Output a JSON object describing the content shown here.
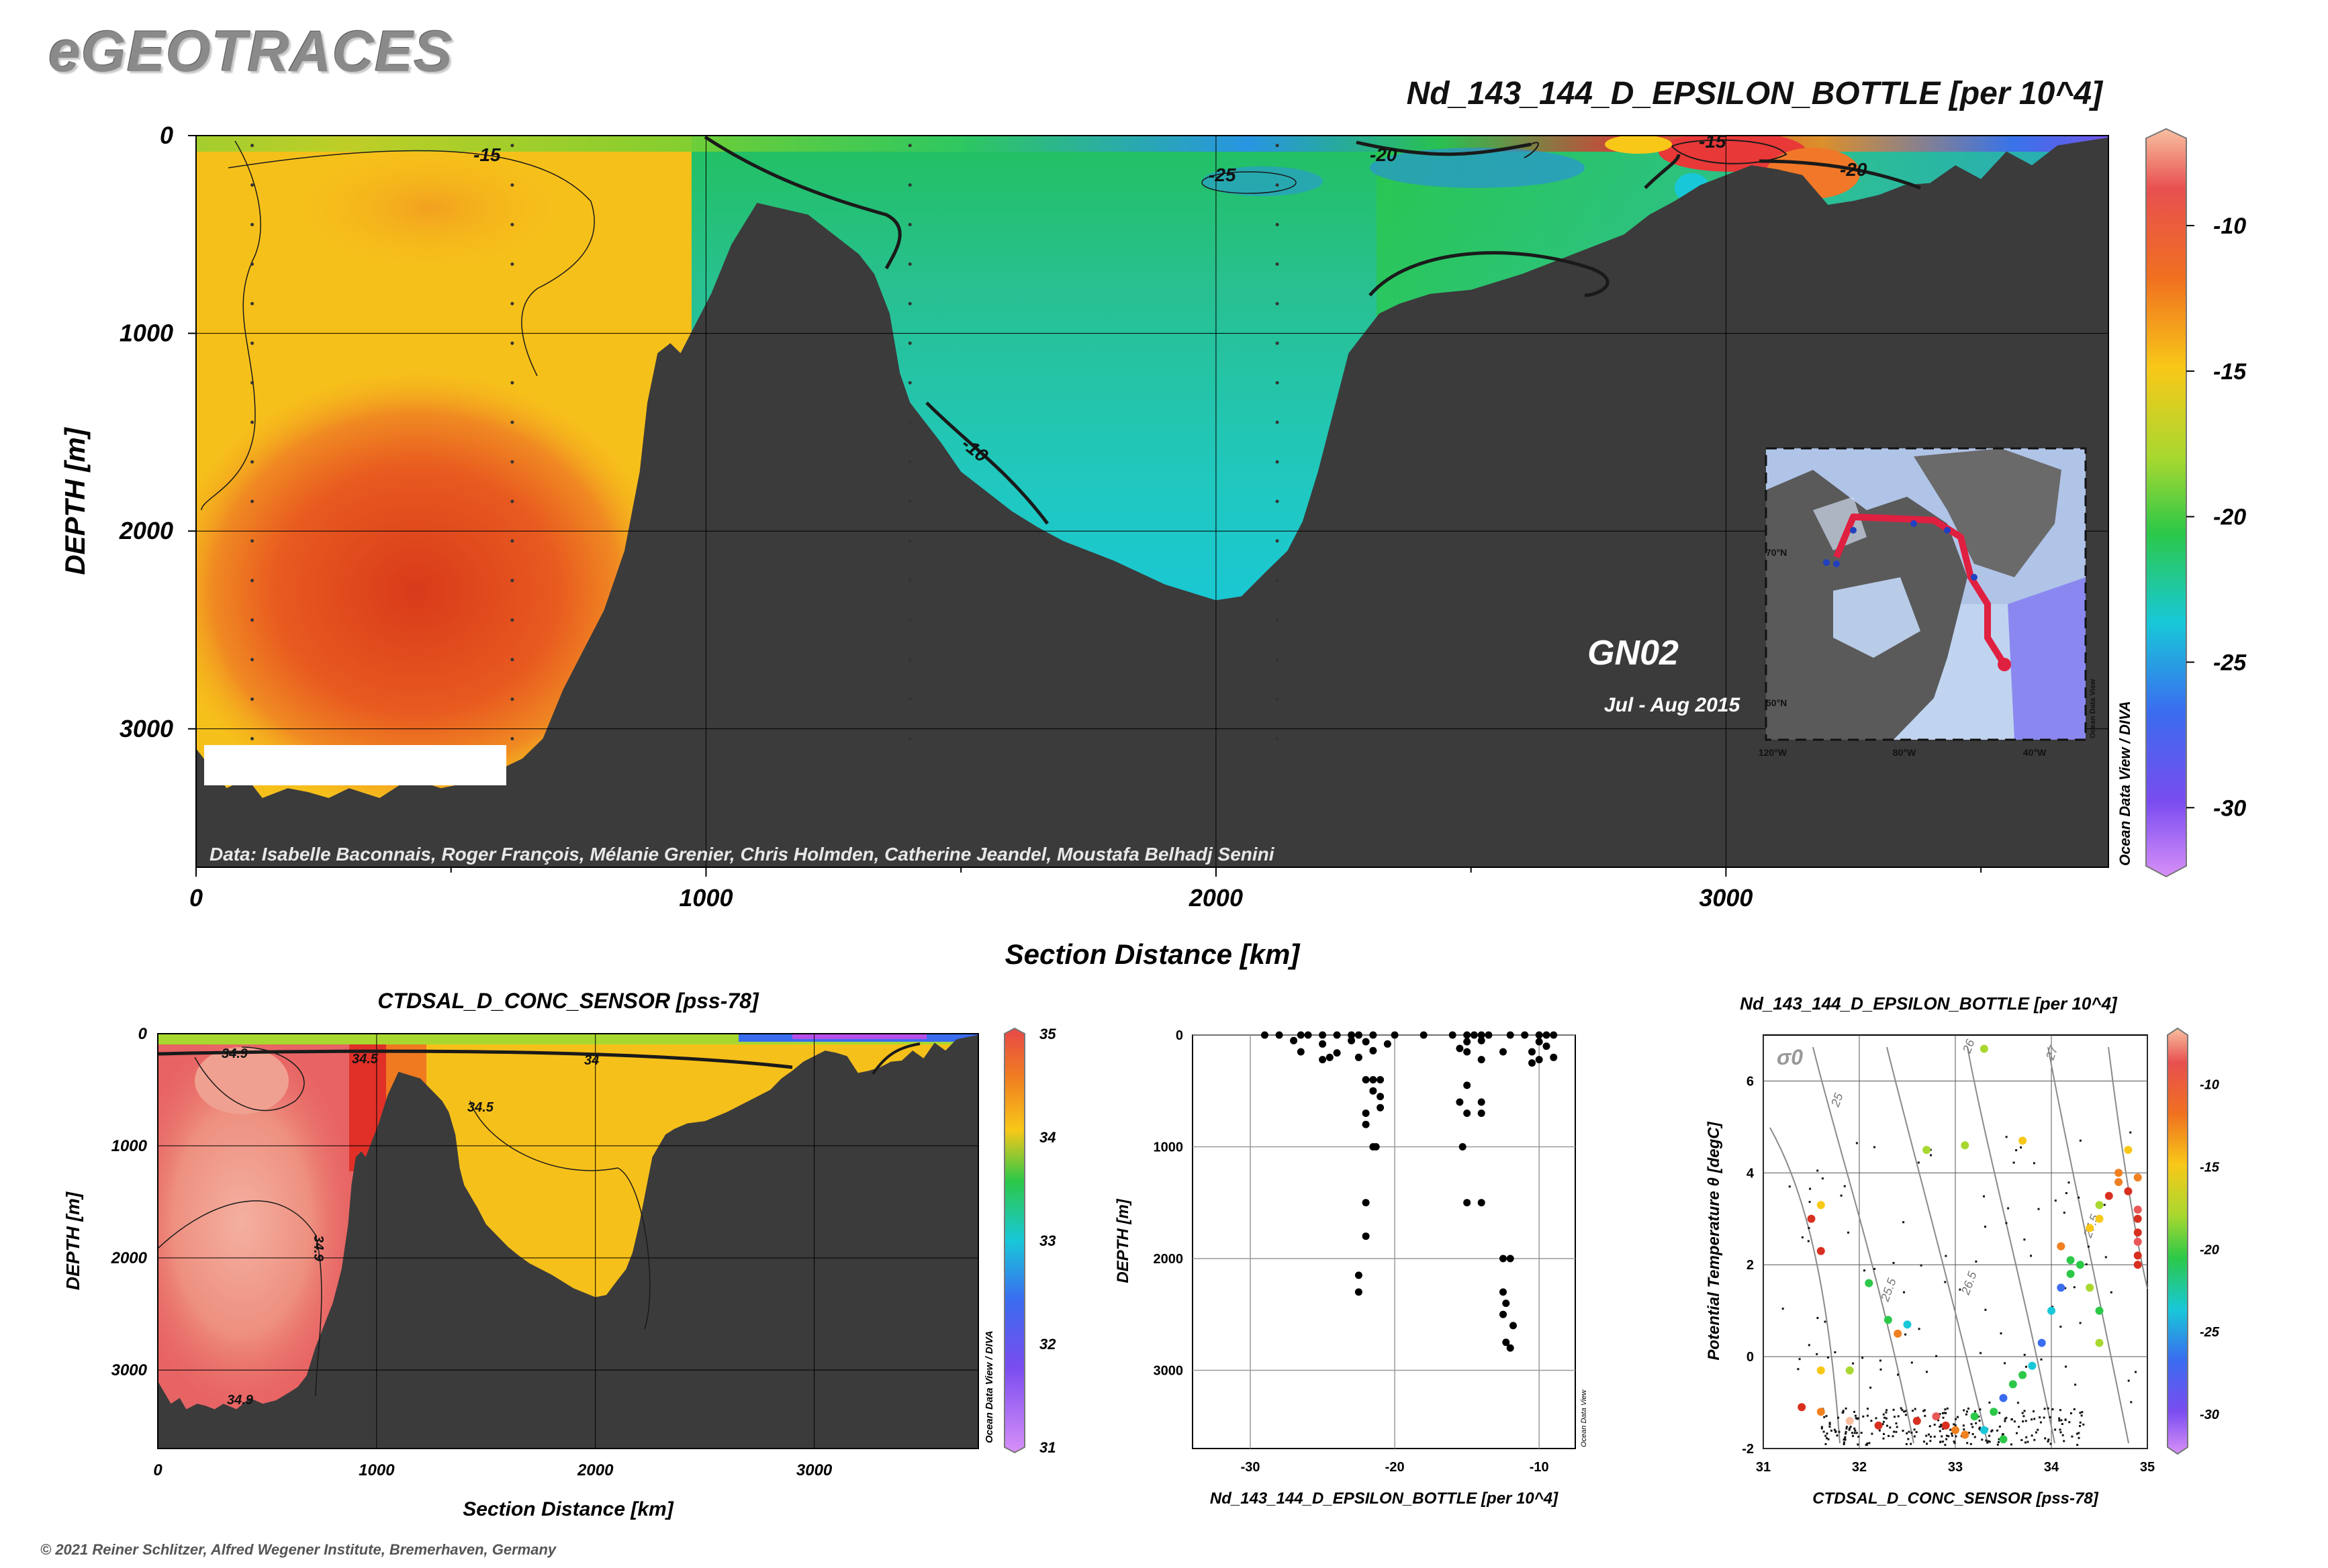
{
  "logo": "eGEOTRACES",
  "copyright": "© 2021 Reiner Schlitzer, Alfred Wegener Institute, Bremerhaven, Germany",
  "colors": {
    "terrain": "#3b3b3b",
    "scale": [
      "#b84ee8",
      "#7a4cf0",
      "#3a6cf0",
      "#18c8d8",
      "#2cc848",
      "#a8d830",
      "#f8c818",
      "#f08020",
      "#d83020",
      "#e85858",
      "#f8c0a0"
    ]
  },
  "main": {
    "title": "Nd_143_144_D_EPSILON_BOTTLE [per 10^4]",
    "xlabel": "Section Distance [km]",
    "ylabel": "DEPTH [m]",
    "credit": "Data: Isabelle Baconnais, Roger François, Mélanie Grenier, Chris Holmden, Catherine Jeandel, Moustafa Belhadj Senini",
    "watermark": "Ocean Data View / DIVA",
    "section_name": "GN02",
    "date_range": "Jul - Aug 2015",
    "contour_labels": [
      "-15",
      "-20",
      "-25",
      "-10",
      "-15",
      "-20"
    ]
  },
  "inset_map": {
    "lat_labels": [
      "70°N",
      "50°N"
    ],
    "lon_labels": [
      "120°W",
      "80°W",
      "40°W"
    ],
    "watermark": "Ocean Data View"
  },
  "bottom_left": {
    "title": "CTDSAL_D_CONC_SENSOR [pss-78]",
    "xlabel": "Section Distance [km]",
    "ylabel": "DEPTH [m]",
    "watermark": "Ocean Data View / DIVA",
    "contour_labels": [
      "34.9",
      "34.5",
      "34",
      "34.5",
      "34.9",
      "34.9"
    ]
  },
  "bottom_mid": {
    "xlabel": "Nd_143_144_D_EPSILON_BOTTLE [per 10^4]",
    "ylabel": "DEPTH [m]",
    "watermark": "Ocean Data View"
  },
  "bottom_right": {
    "title": "Nd_143_144_D_EPSILON_BOTTLE [per 10^4]",
    "xlabel": "CTDSAL_D_CONC_SENSOR [pss-78]",
    "ylabel": "Potential Temperature θ [degC]",
    "sigma_label": "σ0",
    "isopycnal_labels": [
      "25",
      "25.5",
      "26",
      "26.5",
      "27",
      "27.5"
    ]
  },
  "chart_data": [
    {
      "type": "heatmap",
      "title": "Nd_143_144_D_EPSILON_BOTTLE [per 10^4]",
      "xlabel": "Section Distance [km]",
      "ylabel": "DEPTH [m]",
      "xlim": [
        0,
        3750
      ],
      "ylim": [
        3700,
        0
      ],
      "x_ticks": [
        "0",
        "1000",
        "2000",
        "3000"
      ],
      "y_ticks": [
        "0",
        "1000",
        "2000",
        "3000"
      ],
      "colorbar": {
        "range": [
          -32,
          -7
        ],
        "ticks": [
          "-10",
          "-15",
          "-20",
          "-25",
          "-30"
        ]
      },
      "bathymetry": {
        "x": [
          0,
          30,
          60,
          100,
          130,
          180,
          220,
          260,
          300,
          360,
          420,
          480,
          540,
          600,
          640,
          680,
          720,
          760,
          800,
          840,
          870,
          885,
          905,
          930,
          950,
          970,
          990,
          1010,
          1050,
          1100,
          1150,
          1200,
          1250,
          1300,
          1330,
          1360,
          1380,
          1400,
          1430,
          1460,
          1500,
          1550,
          1600,
          1650,
          1700,
          1800,
          1900,
          2000,
          2050,
          2100,
          2140,
          2170,
          2200,
          2230,
          2260,
          2290,
          2320,
          2360,
          2420,
          2500,
          2600,
          2700,
          2800,
          2850,
          2900,
          2950,
          3000,
          3050,
          3100,
          3150,
          3200,
          3250,
          3300,
          3350,
          3400,
          3450,
          3500,
          3550,
          3600,
          3650,
          3700,
          3750
        ],
        "depth": [
          3100,
          3200,
          3300,
          3250,
          3350,
          3300,
          3320,
          3350,
          3300,
          3350,
          3250,
          3300,
          3270,
          3200,
          3150,
          3050,
          2800,
          2600,
          2400,
          2100,
          1700,
          1350,
          1100,
          1050,
          1100,
          1000,
          900,
          800,
          550,
          340,
          370,
          400,
          500,
          600,
          700,
          900,
          1200,
          1350,
          1450,
          1550,
          1700,
          1800,
          1900,
          1980,
          2050,
          2150,
          2270,
          2350,
          2330,
          2200,
          2100,
          1950,
          1700,
          1400,
          1100,
          1000,
          900,
          850,
          800,
          780,
          700,
          600,
          500,
          400,
          330,
          250,
          200,
          150,
          170,
          200,
          350,
          330,
          300,
          250,
          240,
          150,
          220,
          80,
          150,
          50,
          30,
          10
        ]
      },
      "contours": [
        {
          "level": -15,
          "label_x": 580,
          "label_depth": 90
        },
        {
          "level": -20,
          "label_x": 2340,
          "label_depth": 90
        },
        {
          "level": -25,
          "label_x": 2020,
          "label_depth": 200
        },
        {
          "level": -20,
          "label_x": 1550,
          "label_depth": 1550
        },
        {
          "level": -10,
          "label_x": 2970,
          "label_depth": 40
        },
        {
          "level": -15,
          "label_x": 3210,
          "label_depth": 170
        }
      ],
      "stations_km": [
        110,
        620,
        1400,
        2120
      ],
      "annotation": "GN02 Jul - Aug 2015"
    },
    {
      "type": "heatmap",
      "title": "CTDSAL_D_CONC_SENSOR [pss-78]",
      "xlabel": "Section Distance [km]",
      "ylabel": "DEPTH [m]",
      "xlim": [
        0,
        3750
      ],
      "ylim": [
        3700,
        0
      ],
      "x_ticks": [
        "0",
        "1000",
        "2000",
        "3000"
      ],
      "y_ticks": [
        "0",
        "1000",
        "2000",
        "3000"
      ],
      "colorbar": {
        "range": [
          31,
          35
        ],
        "ticks": [
          "35",
          "34",
          "33",
          "32",
          "31"
        ]
      }
    },
    {
      "type": "scatter",
      "xlabel": "Nd_143_144_D_EPSILON_BOTTLE [per 10^4]",
      "ylabel": "DEPTH [m]",
      "xlim": [
        -34,
        -7.5
      ],
      "ylim": [
        3700,
        0
      ],
      "x_ticks": [
        "-30",
        "-20",
        "-10"
      ],
      "y_ticks": [
        "0",
        "1000",
        "2000",
        "3000"
      ],
      "points": [
        [
          -29,
          0
        ],
        [
          -28,
          0
        ],
        [
          -26.5,
          0
        ],
        [
          -26,
          0
        ],
        [
          -25,
          0
        ],
        [
          -24,
          0
        ],
        [
          -23,
          0
        ],
        [
          -22.5,
          0
        ],
        [
          -21.5,
          0
        ],
        [
          -20,
          0
        ],
        [
          -18,
          0
        ],
        [
          -16,
          0
        ],
        [
          -15,
          0
        ],
        [
          -14.5,
          0
        ],
        [
          -14,
          0
        ],
        [
          -13.5,
          0
        ],
        [
          -12,
          0
        ],
        [
          -11,
          0
        ],
        [
          -10,
          0
        ],
        [
          -9.5,
          0
        ],
        [
          -9,
          0
        ],
        [
          -27,
          50
        ],
        [
          -25,
          80
        ],
        [
          -23,
          50
        ],
        [
          -22,
          60
        ],
        [
          -15,
          60
        ],
        [
          -14,
          50
        ],
        [
          -10,
          60
        ],
        [
          -9.5,
          100
        ],
        [
          -26.5,
          150
        ],
        [
          -24,
          160
        ],
        [
          -20.5,
          80
        ],
        [
          -15.5,
          120
        ],
        [
          -15,
          150
        ],
        [
          -12.5,
          150
        ],
        [
          -10.5,
          150
        ],
        [
          -9,
          200
        ],
        [
          -25,
          220
        ],
        [
          -24.5,
          200
        ],
        [
          -22.5,
          200
        ],
        [
          -21.5,
          140
        ],
        [
          -14,
          220
        ],
        [
          -10,
          220
        ],
        [
          -10.5,
          250
        ],
        [
          -21.5,
          400
        ],
        [
          -21,
          400
        ],
        [
          -22,
          400
        ],
        [
          -21.5,
          500
        ],
        [
          -21,
          550
        ],
        [
          -21,
          650
        ],
        [
          -22,
          700
        ],
        [
          -22,
          800
        ],
        [
          -15,
          450
        ],
        [
          -15.5,
          600
        ],
        [
          -14,
          600
        ],
        [
          -15,
          700
        ],
        [
          -14,
          700
        ],
        [
          -21.5,
          1000
        ],
        [
          -21.3,
          1000
        ],
        [
          -15.3,
          1000
        ],
        [
          -22,
          1500
        ],
        [
          -15,
          1500
        ],
        [
          -14,
          1500
        ],
        [
          -22,
          1800
        ],
        [
          -12.5,
          2000
        ],
        [
          -12,
          2000
        ],
        [
          -22.5,
          2150
        ],
        [
          -22.5,
          2300
        ],
        [
          -12.5,
          2300
        ],
        [
          -12.3,
          2400
        ],
        [
          -12.5,
          2500
        ],
        [
          -11.8,
          2600
        ],
        [
          -12.3,
          2750
        ],
        [
          -12,
          2800
        ]
      ]
    },
    {
      "type": "scatter",
      "title": "Nd_143_144_D_EPSILON_BOTTLE [per 10^4]",
      "xlabel": "CTDSAL_D_CONC_SENSOR [pss-78]",
      "ylabel": "Potential Temperature θ [degC]",
      "xlim": [
        31,
        35
      ],
      "ylim": [
        -2,
        7
      ],
      "x_ticks": [
        "31",
        "32",
        "33",
        "34",
        "35"
      ],
      "y_ticks": [
        "-2",
        "0",
        "2",
        "4",
        "6"
      ],
      "colorbar": {
        "range": [
          -32,
          -7
        ],
        "ticks": [
          "-10",
          "-15",
          "-20",
          "-25",
          "-30"
        ]
      },
      "isopycnals": [
        "25",
        "25.5",
        "26",
        "26.5",
        "27",
        "27.5"
      ],
      "colored_points": [
        [
          31.5,
          3.0,
          -12
        ],
        [
          31.6,
          2.3,
          -11
        ],
        [
          31.6,
          3.3,
          -17
        ],
        [
          32.1,
          1.6,
          -23
        ],
        [
          32.3,
          0.8,
          -23
        ],
        [
          32.5,
          0.7,
          -24
        ],
        [
          32.4,
          0.5,
          -15
        ],
        [
          31.9,
          -0.3,
          -20
        ],
        [
          31.6,
          -0.3,
          -17
        ],
        [
          31.4,
          -1.1,
          -11
        ],
        [
          31.6,
          -1.2,
          -15
        ],
        [
          31.9,
          -1.4,
          -8
        ],
        [
          32.2,
          -1.5,
          -12
        ],
        [
          32.6,
          -1.4,
          -11
        ],
        [
          32.8,
          -1.3,
          -10
        ],
        [
          32.9,
          -1.5,
          -11
        ],
        [
          33.0,
          -1.6,
          -15
        ],
        [
          33.1,
          -1.7,
          -14
        ],
        [
          33.3,
          -1.6,
          -25
        ],
        [
          33.5,
          -1.8,
          -22
        ],
        [
          33.2,
          -1.3,
          -23
        ],
        [
          33.4,
          -1.2,
          -21
        ],
        [
          33.5,
          -0.9,
          -26
        ],
        [
          33.6,
          -0.6,
          -21
        ],
        [
          33.7,
          -0.4,
          -22
        ],
        [
          33.8,
          -0.2,
          -24
        ],
        [
          33.9,
          0.3,
          -26
        ],
        [
          34.0,
          1.0,
          -25
        ],
        [
          34.1,
          1.5,
          -26
        ],
        [
          34.2,
          1.8,
          -23
        ],
        [
          34.1,
          2.4,
          -15
        ],
        [
          34.2,
          2.1,
          -22
        ],
        [
          34.3,
          2.0,
          -21
        ],
        [
          34.4,
          1.5,
          -20
        ],
        [
          34.5,
          1.0,
          -21
        ],
        [
          34.5,
          0.3,
          -20
        ],
        [
          34.4,
          2.8,
          -18
        ],
        [
          34.5,
          3.0,
          -16
        ],
        [
          34.5,
          3.3,
          -20
        ],
        [
          34.6,
          3.5,
          -12
        ],
        [
          34.7,
          3.8,
          -14
        ],
        [
          34.7,
          4.0,
          -15
        ],
        [
          34.8,
          3.6,
          -13
        ],
        [
          34.9,
          3.2,
          -10
        ],
        [
          34.9,
          3.0,
          -11
        ],
        [
          34.9,
          2.7,
          -12
        ],
        [
          34.9,
          2.5,
          -10
        ],
        [
          34.9,
          2.2,
          -11
        ],
        [
          34.9,
          2.0,
          -12
        ],
        [
          34.8,
          4.5,
          -16
        ],
        [
          34.9,
          3.9,
          -14
        ],
        [
          33.1,
          4.6,
          -20
        ],
        [
          32.7,
          4.5,
          -19
        ],
        [
          33.7,
          4.7,
          -16
        ],
        [
          33.3,
          6.7,
          -20
        ]
      ]
    }
  ]
}
